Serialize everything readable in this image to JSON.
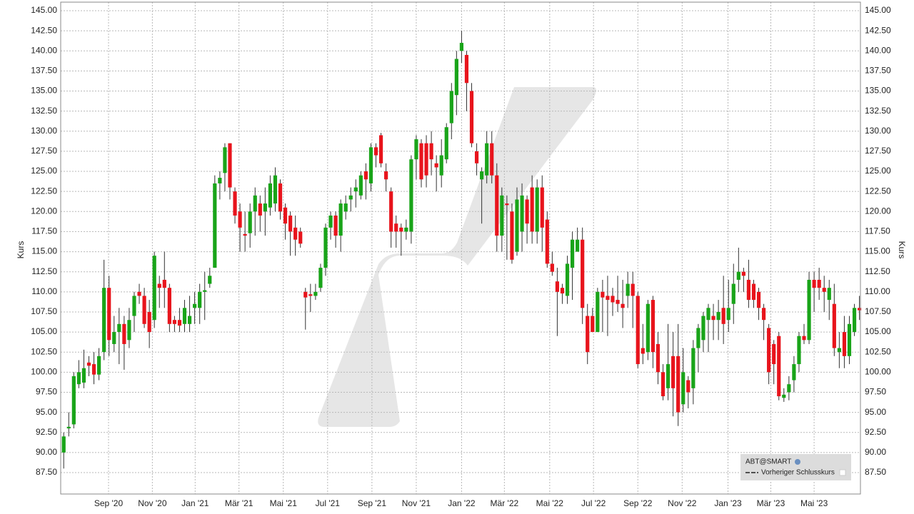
{
  "chart_data": {
    "type": "candlestick",
    "series": [
      {
        "name": "ABT@SMART",
        "up_color": "#19a419",
        "down_color": "#e8141c",
        "ohlc": [
          [
            90,
            92.5,
            88,
            92
          ],
          [
            93,
            95,
            92,
            93.2
          ],
          [
            93.5,
            100,
            93,
            99.5
          ],
          [
            98.5,
            101.5,
            98,
            100
          ],
          [
            98.7,
            102.8,
            98,
            100.5
          ],
          [
            101.2,
            102,
            99.5,
            100.8
          ],
          [
            101,
            102.5,
            98.5,
            99.7
          ],
          [
            99.7,
            103,
            99,
            102
          ],
          [
            102.5,
            114,
            101.5,
            110.5
          ],
          [
            110.5,
            112,
            102,
            104
          ],
          [
            103.5,
            107,
            102.5,
            105
          ],
          [
            105,
            108,
            101,
            106
          ],
          [
            106,
            107,
            100.3,
            103.5
          ],
          [
            104,
            108,
            103,
            106.5
          ],
          [
            107,
            110,
            105,
            109.5
          ],
          [
            110,
            111,
            108.5,
            109.5
          ],
          [
            109.5,
            110.5,
            105.5,
            106
          ],
          [
            107.5,
            109,
            103,
            105
          ],
          [
            106.5,
            115,
            105.5,
            114.5
          ],
          [
            111,
            112,
            108,
            110.5
          ],
          [
            111.5,
            115,
            108,
            110.5
          ],
          [
            110.5,
            111,
            105,
            106
          ],
          [
            106.5,
            107,
            105,
            106
          ],
          [
            106.5,
            108,
            105,
            105.8
          ],
          [
            106,
            109,
            105,
            108
          ],
          [
            106,
            109.5,
            105,
            107
          ],
          [
            108,
            110,
            106,
            108.5
          ],
          [
            108,
            111,
            106,
            110
          ],
          [
            110,
            112.5,
            106.5,
            110.2
          ],
          [
            111,
            113,
            110.5,
            112
          ],
          [
            113,
            124.5,
            113,
            123.5
          ],
          [
            123.5,
            125,
            121.5,
            124.2
          ],
          [
            124.8,
            128.5,
            122.5,
            128
          ],
          [
            128.5,
            128.5,
            121.5,
            123
          ],
          [
            122.5,
            123,
            118.5,
            119.5
          ],
          [
            120,
            121,
            115,
            118
          ],
          [
            117.2,
            120,
            115,
            117
          ],
          [
            117.3,
            121,
            115.5,
            120
          ],
          [
            120,
            123,
            117,
            122
          ],
          [
            121,
            122,
            117.5,
            119.5
          ],
          [
            120,
            123,
            117,
            121
          ],
          [
            120.5,
            124.5,
            119.5,
            123.5
          ],
          [
            121,
            125.5,
            120,
            124.5
          ],
          [
            123.5,
            124,
            119,
            120
          ],
          [
            120.5,
            121,
            116.5,
            118.5
          ],
          [
            119.5,
            120,
            114.5,
            117.5
          ],
          [
            118,
            119.5,
            114.5,
            116.5
          ],
          [
            117.5,
            118,
            115.5,
            116
          ],
          [
            110,
            110.5,
            105.3,
            109.3
          ],
          [
            109.7,
            111,
            107.5,
            109.5
          ],
          [
            109.5,
            111,
            109,
            110
          ],
          [
            110.5,
            113.5,
            110,
            113
          ],
          [
            113,
            118.5,
            112,
            118
          ],
          [
            118,
            120,
            116.5,
            119.5
          ],
          [
            119.5,
            120,
            115.5,
            117
          ],
          [
            117,
            121.5,
            115,
            121
          ],
          [
            120,
            122,
            119,
            121
          ],
          [
            121.5,
            123,
            120,
            122
          ],
          [
            122.5,
            124,
            120.5,
            123
          ],
          [
            122,
            125,
            121.5,
            124.5
          ],
          [
            125,
            126,
            121.5,
            124
          ],
          [
            123.5,
            128.5,
            122.5,
            128
          ],
          [
            128,
            128.5,
            125.5,
            127
          ],
          [
            129.5,
            129.8,
            125.5,
            126
          ],
          [
            125,
            126,
            122.5,
            124
          ],
          [
            122.5,
            123,
            115.5,
            117.5
          ],
          [
            118.5,
            119.5,
            115.5,
            117.5
          ],
          [
            118,
            118.5,
            114.5,
            117.5
          ],
          [
            117.5,
            119,
            116.5,
            118
          ],
          [
            117.5,
            127,
            116,
            126.5
          ],
          [
            126.5,
            129.5,
            124,
            129
          ],
          [
            128.5,
            129,
            123,
            124
          ],
          [
            128.5,
            129.5,
            123,
            124.5
          ],
          [
            128.5,
            130,
            124.5,
            126.5
          ],
          [
            126,
            127,
            122.5,
            125.5
          ],
          [
            124.5,
            129,
            123,
            127
          ],
          [
            126.5,
            131,
            126,
            130.5
          ],
          [
            131,
            136,
            129,
            135
          ],
          [
            134.5,
            140,
            132,
            139
          ],
          [
            140,
            142.5,
            138.5,
            141
          ],
          [
            139.5,
            140,
            132.5,
            136
          ],
          [
            135,
            136,
            128,
            128.5
          ],
          [
            127.5,
            128.5,
            124.5,
            126
          ],
          [
            124,
            125.5,
            118.5,
            125
          ],
          [
            124.5,
            130,
            123.5,
            128.5
          ],
          [
            128.5,
            130,
            123.5,
            124.5
          ],
          [
            124.5,
            126,
            115,
            117
          ],
          [
            117,
            123,
            115,
            122
          ],
          [
            121,
            122,
            114,
            120.8
          ],
          [
            120,
            121,
            113.5,
            114
          ],
          [
            115,
            123,
            114.5,
            121.5
          ],
          [
            117.5,
            123.5,
            115,
            122
          ],
          [
            121.5,
            122,
            116,
            118.5
          ],
          [
            123,
            124.5,
            116,
            117.5
          ],
          [
            117.5,
            124,
            116,
            123
          ],
          [
            123,
            124.5,
            115,
            118
          ],
          [
            119,
            120,
            113,
            113.5
          ],
          [
            113.5,
            115,
            112,
            112.5
          ],
          [
            111.3,
            113,
            104.5,
            110
          ],
          [
            110.5,
            111,
            108.5,
            109.8
          ],
          [
            109.5,
            114.5,
            108.5,
            113.5
          ],
          [
            113,
            117.5,
            109,
            116.5
          ],
          [
            115,
            118,
            115,
            116.5
          ],
          [
            116.5,
            118,
            106,
            108
          ],
          [
            107,
            108.5,
            101,
            102.5
          ],
          [
            107,
            108,
            105,
            105
          ],
          [
            105,
            110.5,
            105,
            110
          ],
          [
            110,
            111.5,
            105,
            109.3
          ],
          [
            109.5,
            112,
            104.5,
            109
          ],
          [
            109.5,
            110.5,
            107,
            108.7
          ],
          [
            109,
            112,
            107.5,
            108.5
          ],
          [
            108.5,
            111.5,
            105.5,
            108
          ],
          [
            109.5,
            112.5,
            108,
            111
          ],
          [
            111,
            112.5,
            105.5,
            109.5
          ],
          [
            109.5,
            110,
            100.5,
            101
          ],
          [
            103,
            106,
            101,
            102.3
          ],
          [
            102.5,
            109,
            101.5,
            108.5
          ],
          [
            109,
            109.5,
            100.5,
            102.5
          ],
          [
            103.5,
            105,
            98.5,
            100
          ],
          [
            100,
            101,
            96.5,
            97
          ],
          [
            98,
            106,
            96.5,
            101
          ],
          [
            102,
            105,
            94.5,
            98
          ],
          [
            102,
            106,
            93.3,
            95
          ],
          [
            96,
            103,
            95,
            100
          ],
          [
            99,
            99.5,
            95.5,
            97.5
          ],
          [
            98,
            104,
            96,
            103
          ],
          [
            103,
            106,
            100,
            105.5
          ],
          [
            104,
            107.5,
            102.5,
            107
          ],
          [
            106.5,
            108.5,
            102.5,
            108
          ],
          [
            107,
            108.5,
            104,
            106.5
          ],
          [
            106.5,
            109,
            104,
            107.5
          ],
          [
            108,
            112,
            103.5,
            106
          ],
          [
            106.5,
            111.5,
            105,
            108
          ],
          [
            108.5,
            113.5,
            106,
            111
          ],
          [
            111.5,
            115.5,
            110,
            112.5
          ],
          [
            112.5,
            113,
            110,
            112
          ],
          [
            111.5,
            114,
            108,
            109
          ],
          [
            111,
            111.5,
            108,
            109
          ],
          [
            110,
            110.5,
            106.5,
            108
          ],
          [
            108,
            108.5,
            104,
            106.5
          ],
          [
            105.5,
            106,
            98.5,
            100
          ],
          [
            103.5,
            104,
            98.5,
            101
          ],
          [
            104.5,
            105,
            96.5,
            97
          ],
          [
            96.8,
            98,
            96.3,
            97.2
          ],
          [
            97.5,
            99.5,
            96.5,
            98.5
          ],
          [
            99,
            102,
            97.5,
            101
          ],
          [
            101,
            105,
            100,
            104.5
          ],
          [
            104.5,
            106,
            103.5,
            104
          ],
          [
            104,
            112.5,
            103.5,
            111.5
          ],
          [
            111.5,
            112.5,
            107.5,
            110.5
          ],
          [
            111.5,
            113,
            109,
            110.5
          ],
          [
            110.5,
            112,
            107.5,
            110
          ],
          [
            109,
            111.5,
            106.5,
            110.5
          ],
          [
            108.5,
            111,
            102,
            103
          ],
          [
            102.5,
            105,
            100.5,
            103
          ],
          [
            105,
            107,
            100.5,
            102
          ],
          [
            102,
            107,
            101,
            106
          ],
          [
            105,
            108.5,
            104.5,
            108
          ],
          [
            108,
            109.5,
            106.5,
            107.7
          ]
        ]
      },
      {
        "name": "Vorheriger Schlusskurs"
      }
    ],
    "xlim": [
      -0.6,
      158.2
    ],
    "xticks": [
      {
        "value": 8.9,
        "label": "Sep '20"
      },
      {
        "value": 17.6,
        "label": "Nov '20"
      },
      {
        "value": 26.1,
        "label": "Jan '21"
      },
      {
        "value": 34.8,
        "label": "Mär '21"
      },
      {
        "value": 43.6,
        "label": "Mai '21"
      },
      {
        "value": 52.4,
        "label": "Jul '21"
      },
      {
        "value": 61.2,
        "label": "Sep '21"
      },
      {
        "value": 70,
        "label": "Nov '21"
      },
      {
        "value": 79,
        "label": "Jan '22"
      },
      {
        "value": 87.5,
        "label": "Mär '22"
      },
      {
        "value": 96.5,
        "label": "Mai '22"
      },
      {
        "value": 105.2,
        "label": "Jul '22"
      },
      {
        "value": 114,
        "label": "Sep '22"
      },
      {
        "value": 122.8,
        "label": "Nov '22"
      },
      {
        "value": 131.9,
        "label": "Jan '23"
      },
      {
        "value": 140.4,
        "label": "Mär '23"
      },
      {
        "value": 149,
        "label": "Mai '23"
      }
    ],
    "ylim": [
      84.83,
      146.07
    ],
    "yticks": [
      {
        "value": 87.5,
        "label": "87.50"
      },
      {
        "value": 90,
        "label": "90.00"
      },
      {
        "value": 92.5,
        "label": "92.50"
      },
      {
        "value": 95,
        "label": "95.00"
      },
      {
        "value": 97.5,
        "label": "97.50"
      },
      {
        "value": 100,
        "label": "100.00"
      },
      {
        "value": 102.5,
        "label": "102.50"
      },
      {
        "value": 105,
        "label": "105.00"
      },
      {
        "value": 107.5,
        "label": "107.50"
      },
      {
        "value": 110,
        "label": "110.00"
      },
      {
        "value": 112.5,
        "label": "112.50"
      },
      {
        "value": 115,
        "label": "115.00"
      },
      {
        "value": 117.5,
        "label": "117.50"
      },
      {
        "value": 120,
        "label": "120.00"
      },
      {
        "value": 122.5,
        "label": "122.50"
      },
      {
        "value": 125,
        "label": "125.00"
      },
      {
        "value": 127.5,
        "label": "127.50"
      },
      {
        "value": 130,
        "label": "130.00"
      },
      {
        "value": 132.5,
        "label": "132.50"
      },
      {
        "value": 135,
        "label": "135.00"
      },
      {
        "value": 137.5,
        "label": "137.50"
      },
      {
        "value": 140,
        "label": "140.00"
      },
      {
        "value": 142.5,
        "label": "142.50"
      },
      {
        "value": 145,
        "label": "145.00"
      }
    ],
    "ylabel": "Kurs",
    "y2label": "Kurs",
    "grid": true,
    "legend": "bottom-right"
  }
}
